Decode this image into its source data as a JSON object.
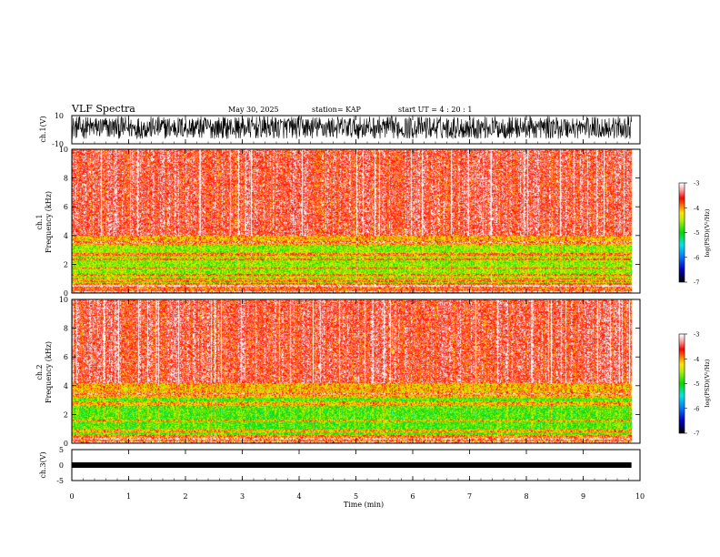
{
  "header": {
    "title": "VLF Spectra",
    "date": "May 30, 2025",
    "station": "station= KAP",
    "start_ut": "start  UT  =   4 : 20 : 1"
  },
  "chart_data": [
    {
      "type": "line",
      "name": "ch1-waveform",
      "ylabel": "ch.1(V)",
      "ylim": [
        -10,
        10
      ],
      "yticks": [
        "10",
        "-10"
      ],
      "description_values": "dense noise waveform mostly between -6 and 10 V",
      "x_range_min": [
        0,
        9.85
      ]
    },
    {
      "type": "heatmap",
      "name": "ch1-spectrogram",
      "ylabel": "ch.1\nFrequency (kHz)",
      "ylim": [
        0,
        10
      ],
      "yticks": [
        "0",
        "2",
        "4",
        "6",
        "8",
        "10"
      ],
      "bands": [
        {
          "from": 0.0,
          "to": 0.7,
          "level": -3.8
        },
        {
          "from": 0.7,
          "to": 3.3,
          "level": -4.6
        },
        {
          "from": 3.3,
          "to": 4.0,
          "level": -4.1
        },
        {
          "from": 4.0,
          "to": 10.0,
          "level": -3.5
        }
      ],
      "colorbar": {
        "label": "log(PSD)(V²/Hz)",
        "ticks": [
          "-3",
          "-4",
          "-5",
          "-6",
          "-7"
        ],
        "range": [
          -7,
          -3
        ]
      }
    },
    {
      "type": "heatmap",
      "name": "ch2-spectrogram",
      "ylabel": "ch.2\nFrequency (kHz)",
      "ylim": [
        0,
        10
      ],
      "yticks": [
        "0",
        "2",
        "4",
        "6",
        "8",
        "10"
      ],
      "bands": [
        {
          "from": 0.0,
          "to": 0.6,
          "level": -3.9
        },
        {
          "from": 0.6,
          "to": 3.2,
          "level": -4.8
        },
        {
          "from": 3.2,
          "to": 4.2,
          "level": -4.1
        },
        {
          "from": 4.2,
          "to": 10.0,
          "level": -3.5
        }
      ],
      "colorbar": {
        "label": "log(PSD)(V²/Hz)",
        "ticks": [
          "-3",
          "-4",
          "-5",
          "-6",
          "-7"
        ],
        "range": [
          -7,
          -3
        ]
      }
    },
    {
      "type": "line",
      "name": "ch3-waveform",
      "ylabel": "ch.3(V)",
      "ylim": [
        -5,
        5
      ],
      "yticks": [
        "5",
        "0",
        "-5"
      ],
      "level": 0,
      "x_range_min": [
        0,
        9.85
      ]
    }
  ],
  "xaxis": {
    "label": "Time  (min)",
    "range": [
      0,
      10
    ],
    "ticks": [
      "0",
      "1",
      "2",
      "3",
      "4",
      "5",
      "6",
      "7",
      "8",
      "9",
      "10"
    ]
  }
}
